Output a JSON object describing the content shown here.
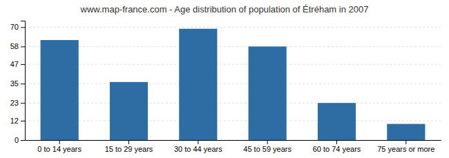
{
  "chart_data": {
    "type": "bar",
    "title": "www.map-france.com - Age distribution of population of Étréham in 2007",
    "categories": [
      "0 to 14 years",
      "15 to 29 years",
      "30 to 44 years",
      "45 to 59 years",
      "60 to 74 years",
      "75 years or more"
    ],
    "values": [
      62,
      36,
      69,
      58,
      23,
      10
    ],
    "color": "#2e6da4",
    "ylim": [
      0,
      74
    ],
    "yticks": [
      0,
      12,
      23,
      35,
      47,
      58,
      70
    ],
    "grid": true
  }
}
